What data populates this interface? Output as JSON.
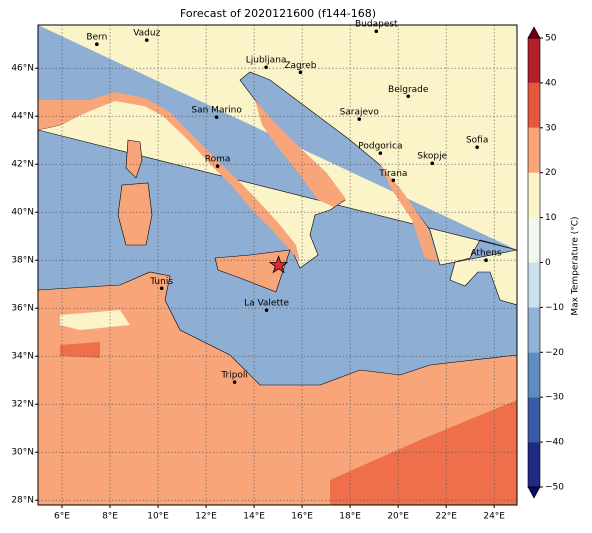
{
  "title": "Forecast of 2020121600 (f144-168)",
  "map": {
    "lonlim": [
      5,
      24.95
    ],
    "latlim": [
      27.8,
      47.8
    ],
    "lonticks": [
      {
        "value": 6,
        "label": "6°E"
      },
      {
        "value": 8,
        "label": "8°E"
      },
      {
        "value": 10,
        "label": "10°E"
      },
      {
        "value": 12,
        "label": "12°E"
      },
      {
        "value": 14,
        "label": "14°E"
      },
      {
        "value": 16,
        "label": "16°E"
      },
      {
        "value": 18,
        "label": "18°E"
      },
      {
        "value": 20,
        "label": "20°E"
      },
      {
        "value": 22,
        "label": "22°E"
      },
      {
        "value": 24,
        "label": "24°E"
      }
    ],
    "latticks": [
      {
        "value": 28,
        "label": "28°N"
      },
      {
        "value": 30,
        "label": "30°N"
      },
      {
        "value": 32,
        "label": "32°N"
      },
      {
        "value": 34,
        "label": "34°N"
      },
      {
        "value": 36,
        "label": "36°N"
      },
      {
        "value": 38,
        "label": "38°N"
      },
      {
        "value": 40,
        "label": "40°N"
      },
      {
        "value": 42,
        "label": "42°N"
      },
      {
        "value": 44,
        "label": "44°N"
      },
      {
        "value": 46,
        "label": "46°N"
      }
    ],
    "grid": true,
    "cities": [
      {
        "name": "Bern",
        "lon": 7.45,
        "lat": 47.0
      },
      {
        "name": "Vaduz",
        "lon": 9.53,
        "lat": 47.17
      },
      {
        "name": "Budapest",
        "lon": 19.09,
        "lat": 47.54
      },
      {
        "name": "Ljubljana",
        "lon": 14.5,
        "lat": 46.04
      },
      {
        "name": "Zagreb",
        "lon": 15.93,
        "lat": 45.83
      },
      {
        "name": "Belgrade",
        "lon": 20.42,
        "lat": 44.83
      },
      {
        "name": "San Marino",
        "lon": 12.44,
        "lat": 43.96
      },
      {
        "name": "Sarajevo",
        "lon": 18.38,
        "lat": 43.88
      },
      {
        "name": "Sofia",
        "lon": 23.29,
        "lat": 42.71
      },
      {
        "name": "Roma",
        "lon": 12.48,
        "lat": 41.92
      },
      {
        "name": "Podgorica",
        "lon": 19.26,
        "lat": 42.46
      },
      {
        "name": "Skopje",
        "lon": 21.42,
        "lat": 42.04
      },
      {
        "name": "Tirana",
        "lon": 19.8,
        "lat": 41.33
      },
      {
        "name": "Athens",
        "lon": 23.66,
        "lat": 38.0
      },
      {
        "name": "Tunis",
        "lon": 10.15,
        "lat": 36.83
      },
      {
        "name": "La Valette",
        "lon": 14.52,
        "lat": 35.92
      },
      {
        "name": "Tripoli",
        "lon": 13.19,
        "lat": 32.92
      }
    ],
    "marker": {
      "lon": 15.02,
      "lat": 37.79,
      "color": "#e8262a"
    }
  },
  "colorbar": {
    "label": "Max Temperature (°C)",
    "ticks": [
      {
        "value": -50,
        "label": "−50"
      },
      {
        "value": -40,
        "label": "−40"
      },
      {
        "value": -30,
        "label": "−30"
      },
      {
        "value": -20,
        "label": "−20"
      },
      {
        "value": -10,
        "label": "−10"
      },
      0,
      10,
      20,
      30,
      40,
      50
    ],
    "colors": [
      "#1f2a86",
      "#3a5aa6",
      "#5f8dc0",
      "#8fb2d6",
      "#c9e2ee",
      "#f3f8ee",
      "#fbf4c9",
      "#f9a57a",
      "#e5583f",
      "#b51e2b"
    ],
    "extend_colors": [
      "#0b0b62",
      "#6a0016"
    ]
  }
}
